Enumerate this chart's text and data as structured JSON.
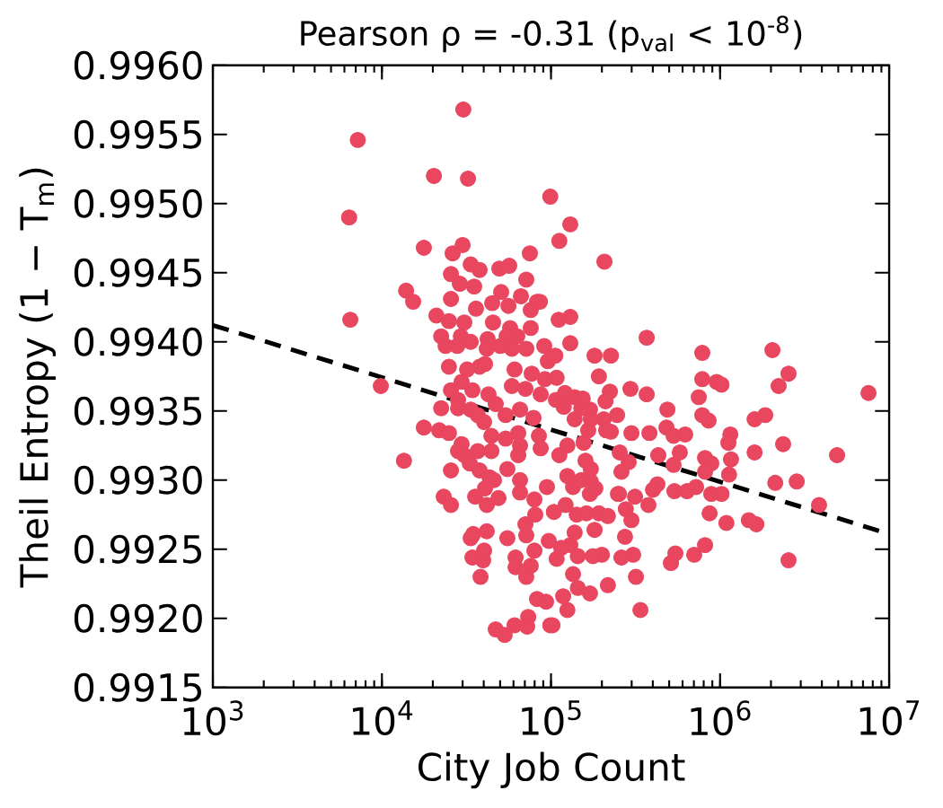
{
  "chart_data": {
    "type": "scatter",
    "title": "Pearson ρ = -0.31 (p$_{val}$ < 10$^{-8}$)",
    "xlabel": "City Job Count",
    "ylabel": "Theil Entropy (1 − T$_{m}$)",
    "log": "x",
    "marker": "circle",
    "xlim": [
      1000,
      10000000
    ],
    "ylim": [
      0.9915,
      0.996
    ],
    "xticks": [
      {
        "value": 1000,
        "label": "10$^{3}$"
      },
      {
        "value": 10000,
        "label": "10$^{4}$"
      },
      {
        "value": 100000,
        "label": "10$^{5}$"
      },
      {
        "value": 1000000,
        "label": "10$^{6}$"
      },
      {
        "value": 10000000,
        "label": "10$^{7}$"
      }
    ],
    "yticks": [
      {
        "value": 0.9915,
        "label": "0.9915"
      },
      {
        "value": 0.992,
        "label": "0.9920"
      },
      {
        "value": 0.9925,
        "label": "0.9925"
      },
      {
        "value": 0.993,
        "label": "0.9930"
      },
      {
        "value": 0.9935,
        "label": "0.9935"
      },
      {
        "value": 0.994,
        "label": "0.9940"
      },
      {
        "value": 0.9945,
        "label": "0.9945"
      },
      {
        "value": 0.995,
        "label": "0.9950"
      },
      {
        "value": 0.9955,
        "label": "0.9955"
      },
      {
        "value": 0.996,
        "label": "0.9960"
      }
    ],
    "series": [
      {
        "color": "#e8475f",
        "x": [
          7200,
          30300,
          20300,
          32300,
          99000,
          6400,
          17700,
          30000,
          26200,
          75000,
          33500,
          37800,
          49500,
          56600,
          25600,
          71400,
          28900,
          35100,
          13900,
          15300,
          50700,
          66400,
          25600,
          44900,
          82700,
          6500,
          21000,
          36000,
          56000,
          75900,
          24900,
          30700,
          45400,
          57300,
          75900,
          22400,
          29300,
          23800,
          27900,
          33500,
          42200,
          54600,
          63200,
          58700,
          71400,
          91200,
          41700,
          50100,
          37800,
          40700,
          24900,
          31900,
          60900,
          76900,
          95800,
          9850,
          17700,
          13500,
          21800,
          24900,
          22400,
          25600,
          28200,
          28200,
          29600,
          34300,
          33500,
          36900,
          40200,
          42700,
          44400,
          44400,
          47100,
          53900,
          58700,
          70600,
          65600,
          64000,
          65600,
          64000,
          78800,
          84800,
          86900,
          86900,
          53900,
          29600,
          28200,
          30700,
          36900,
          33100,
          37800,
          25600,
          55200,
          43300,
          46000,
          40700,
          23200,
          25600,
          35600,
          41700,
          48900,
          65600,
          65600,
          79800,
          80700,
          94600,
          70600,
          71400,
          34700,
          33500,
          41700,
          55200,
          97000,
          79800,
          40200,
          34300,
          39700,
          61700,
          61700,
          75900,
          71400,
          38300,
          82700,
          93500,
          73300,
          72300,
          60900,
          47100,
          53200,
          99000,
          112000,
          207000,
          368000,
          785000,
          2040000,
          2540000,
          2220000,
          7550000,
          130000,
          111000,
          130000,
          181000,
          226000,
          192000,
          785000,
          955000,
          1020000,
          748000,
          785000,
          855000,
          1600000,
          1850000,
          2360000,
          4920000,
          1600000,
          1150000,
          1120000,
          1160000,
          1130000,
          2120000,
          2840000,
          3850000,
          1640000,
          1480000,
          1090000,
          2540000,
          887000,
          1020000,
          867000,
          815000,
          703000,
          544000,
          512000,
          815000,
          887000,
          815000,
          721000,
          638000,
          537000,
          426000,
          401000,
          377000,
          314000,
          252000,
          488000,
          482000,
          531000,
          622000,
          382000,
          431000,
          578000,
          531000,
          295000,
          368000,
          223000,
          210000,
          246000,
          205000,
          299000,
          226000,
          255000,
          288000,
          261000,
          249000,
          277000,
          299000,
          274000,
          306000,
          261000,
          318000,
          338000,
          217000,
          170000,
          200000,
          177000,
          144000,
          130000,
          138000,
          142000,
          181000,
          162000,
          192000,
          217000,
          135000,
          144000,
          118000,
          125000,
          102000,
          108000,
          115000,
          104000,
          122000,
          170000,
          183000,
          172000,
          125000,
          135000,
          151000,
          172000,
          160000,
          112000,
          125000,
          156000,
          166000,
          212000,
          172000,
          138000,
          170000,
          151000,
          119000,
          107000,
          138000,
          154000,
          121000,
          108000,
          92000,
          106000,
          86000,
          130000
        ],
        "values": [
          0.99546,
          0.99568,
          0.9952,
          0.99518,
          0.99505,
          0.9949,
          0.99468,
          0.9947,
          0.99464,
          0.99464,
          0.99456,
          0.99452,
          0.99453,
          0.99455,
          0.99449,
          0.99445,
          0.99442,
          0.9944,
          0.99437,
          0.99429,
          0.99436,
          0.99433,
          0.99431,
          0.99428,
          0.99429,
          0.99416,
          0.99419,
          0.99424,
          0.99426,
          0.99423,
          0.99415,
          0.99414,
          0.99414,
          0.9941,
          0.9941,
          0.99404,
          0.99404,
          0.99397,
          0.99397,
          0.994,
          0.99402,
          0.99404,
          0.99404,
          0.99395,
          0.99395,
          0.99397,
          0.99395,
          0.99397,
          0.99382,
          0.99384,
          0.99382,
          0.9938,
          0.9938,
          0.99377,
          0.99386,
          0.99368,
          0.99338,
          0.99314,
          0.99336,
          0.99334,
          0.99352,
          0.99365,
          0.99358,
          0.99352,
          0.99371,
          0.99365,
          0.99351,
          0.99347,
          0.99342,
          0.99362,
          0.99332,
          0.99321,
          0.99355,
          0.99347,
          0.99368,
          0.99366,
          0.99351,
          0.99334,
          0.99325,
          0.99318,
          0.99345,
          0.99332,
          0.99362,
          0.99323,
          0.9933,
          0.99326,
          0.99321,
          0.99318,
          0.99321,
          0.99312,
          0.99307,
          0.99307,
          0.99308,
          0.99302,
          0.993,
          0.99294,
          0.99288,
          0.99282,
          0.99288,
          0.99282,
          0.99287,
          0.993,
          0.99291,
          0.99286,
          0.99275,
          0.99295,
          0.99268,
          0.9926,
          0.99261,
          0.99258,
          0.99263,
          0.99258,
          0.99256,
          0.99249,
          0.99249,
          0.99244,
          0.99242,
          0.99244,
          0.99237,
          0.99238,
          0.9923,
          0.9923,
          0.99214,
          0.99212,
          0.99201,
          0.99194,
          0.99195,
          0.99192,
          0.99188,
          0.99195,
          0.99473,
          0.99458,
          0.99403,
          0.99392,
          0.99394,
          0.99377,
          0.99368,
          0.99363,
          0.99418,
          0.99416,
          0.99399,
          0.9939,
          0.9939,
          0.99375,
          0.99373,
          0.99371,
          0.99369,
          0.9936,
          0.99347,
          0.99343,
          0.99344,
          0.99347,
          0.99326,
          0.99318,
          0.9932,
          0.99333,
          0.99327,
          0.99315,
          0.99304,
          0.99298,
          0.99299,
          0.99282,
          0.99268,
          0.99271,
          0.99269,
          0.99242,
          0.9929,
          0.9929,
          0.99276,
          0.99253,
          0.99246,
          0.99247,
          0.9924,
          0.99316,
          0.99312,
          0.99306,
          0.99295,
          0.99292,
          0.99292,
          0.99297,
          0.99293,
          0.99282,
          0.99288,
          0.9929,
          0.99351,
          0.99338,
          0.99332,
          0.99333,
          0.99334,
          0.99318,
          0.9932,
          0.99311,
          0.99366,
          0.99362,
          0.99364,
          0.99357,
          0.99347,
          0.99344,
          0.99334,
          0.99335,
          0.9932,
          0.99313,
          0.99306,
          0.9929,
          0.99279,
          0.99271,
          0.99259,
          0.99246,
          0.99244,
          0.9923,
          0.99206,
          0.99224,
          0.99218,
          0.99246,
          0.99245,
          0.99245,
          0.99253,
          0.99262,
          0.99275,
          0.99264,
          0.99276,
          0.99276,
          0.99274,
          0.99232,
          0.99222,
          0.99216,
          0.99206,
          0.99195,
          0.99243,
          0.99251,
          0.99277,
          0.99282,
          0.9929,
          0.99294,
          0.99299,
          0.99303,
          0.99295,
          0.993,
          0.99308,
          0.99314,
          0.99318,
          0.99325,
          0.99327,
          0.99336,
          0.99336,
          0.99344,
          0.99344,
          0.99351,
          0.99352,
          0.99353,
          0.99358,
          0.9936,
          0.99359,
          0.99363,
          0.99374,
          0.99373,
          0.9939,
          0.99429,
          0.99485
        ]
      },
      {
        "type": "line",
        "color": "#000000",
        "line_style": "dashed",
        "marker": "none",
        "x": [
          1000,
          10000000
        ],
        "values": [
          0.99412,
          0.99261
        ]
      }
    ]
  }
}
